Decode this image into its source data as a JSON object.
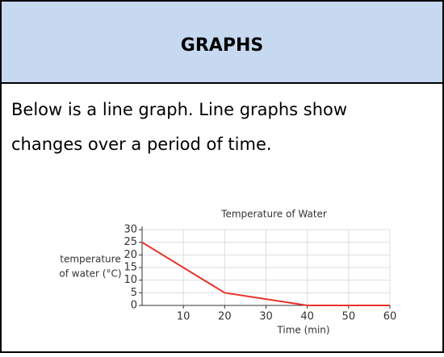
{
  "header": {
    "title": "GRAPHS"
  },
  "body": {
    "lines": [
      "Below is a line graph. Line graphs show",
      "changes over a period of time."
    ]
  },
  "chart_data": {
    "type": "line",
    "title": "Temperature of Water",
    "xlabel": "Time (min)",
    "ylabel": [
      "temperature",
      "of water (°C)"
    ],
    "x": [
      0,
      20,
      40,
      60
    ],
    "series": [
      {
        "name": "Temperature",
        "color": "#e8312a",
        "values": [
          25,
          5,
          0,
          0
        ]
      }
    ],
    "xlim": [
      0,
      60
    ],
    "xticks": [
      10,
      20,
      30,
      40,
      50,
      60
    ],
    "ylim": [
      0,
      30
    ],
    "yticks": [
      0,
      5,
      10,
      15,
      20,
      25,
      30
    ],
    "grid": true
  }
}
